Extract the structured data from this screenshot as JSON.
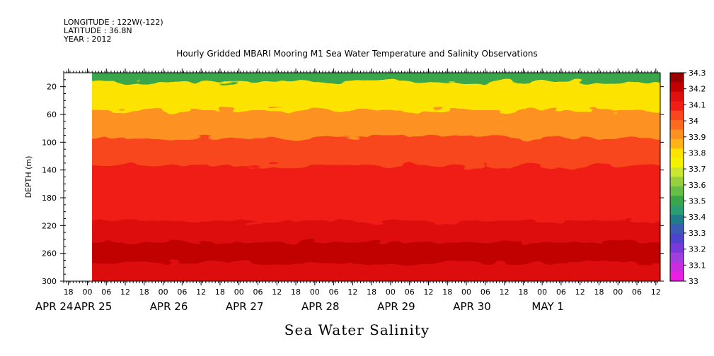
{
  "header": {
    "longitude": "LONGITUDE : 122W(-122)",
    "latitude": "LATITUDE : 36.8N",
    "year": "YEAR : 2012"
  },
  "chart_data": {
    "type": "heatmap",
    "title": "Hourly Gridded MBARI Mooring M1 Sea Water Temperature and Salinity Observations",
    "xlabel": "Sea Water Salinity",
    "ylabel": "DEPTH (m)",
    "yticks": [
      20,
      60,
      100,
      140,
      180,
      220,
      260,
      300
    ],
    "ylim": [
      0,
      300
    ],
    "x_hour_ticks": [
      "18",
      "00",
      "06",
      "12",
      "18",
      "00",
      "06",
      "12",
      "18",
      "00",
      "06",
      "12",
      "18",
      "00",
      "06",
      "12",
      "18",
      "00",
      "06",
      "12",
      "18",
      "00",
      "06",
      "12",
      "18",
      "00",
      "06",
      "12",
      "18",
      "00",
      "06",
      "12"
    ],
    "x_date_labels": [
      "APR 24",
      "APR 25",
      "APR 26",
      "APR 27",
      "APR 28",
      "APR 29",
      "APR 30",
      "MAY  1"
    ],
    "colorbar": {
      "levels": [
        "34.3",
        "34.2",
        "34.1",
        "34",
        "33.9",
        "33.8",
        "33.7",
        "33.6",
        "33.5",
        "33.4",
        "33.3",
        "33.2",
        "33.1",
        "33"
      ],
      "colors": [
        "#9b0000",
        "#c10000",
        "#de1010",
        "#f01e14",
        "#f8461e",
        "#fb6a1e",
        "#fd9121",
        "#ffb317",
        "#fde400",
        "#f4f200",
        "#c8e632",
        "#98cf3c",
        "#66be46",
        "#3aa54b",
        "#2a9e72",
        "#207c8a",
        "#3a5cb4",
        "#4f43cd",
        "#7a3adb",
        "#a23ddf",
        "#c82ddf",
        "#e91fe3"
      ]
    },
    "depth_layers": [
      {
        "depth_range": [
          0,
          20
        ],
        "salinity": 33.55
      },
      {
        "depth_range": [
          20,
          60
        ],
        "salinity": 33.8
      },
      {
        "depth_range": [
          60,
          100
        ],
        "salinity": 33.98
      },
      {
        "depth_range": [
          100,
          140
        ],
        "salinity": 34.08
      },
      {
        "depth_range": [
          140,
          220
        ],
        "salinity": 34.15
      },
      {
        "depth_range": [
          220,
          250
        ],
        "salinity": 34.2
      },
      {
        "depth_range": [
          250,
          280
        ],
        "salinity": 34.28
      },
      {
        "depth_range": [
          280,
          300
        ],
        "salinity": 34.22
      }
    ]
  }
}
